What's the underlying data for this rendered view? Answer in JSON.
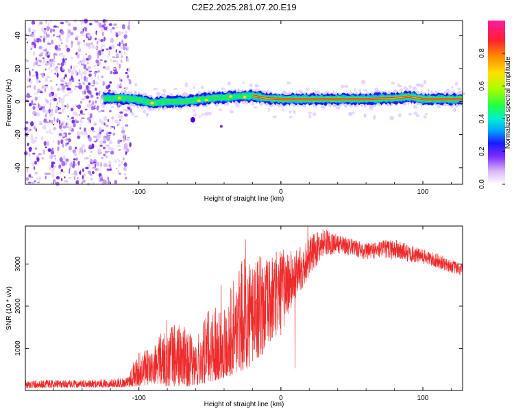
{
  "title": "C2E2.2025.281.07.20.E19",
  "colors": {
    "snr_line": "#ee2b2b",
    "frame": "#000000",
    "background": "#ffffff"
  },
  "chart_data": [
    {
      "type": "heatmap",
      "name": "spectrogram",
      "xlabel": "Height of straight line (km)",
      "ylabel": "Frequency (Hz)",
      "xlim": [
        -180,
        128
      ],
      "ylim": [
        -50,
        49
      ],
      "xticks": [
        -100,
        0,
        100
      ],
      "xtick_labels": [
        "-100",
        "0",
        "100"
      ],
      "yticks": [
        -40,
        -20,
        0,
        20,
        40
      ],
      "ytick_labels": [
        "-40",
        "-20",
        "0",
        "20",
        "40"
      ],
      "noise_region": {
        "x_from": -180,
        "x_to": -105,
        "y_from": -50,
        "y_to": 49
      },
      "signal_trace": [
        {
          "x": -125,
          "y": 2
        },
        {
          "x": -110,
          "y": 2
        },
        {
          "x": -100,
          "y": 1
        },
        {
          "x": -90,
          "y": -1
        },
        {
          "x": -80,
          "y": 0
        },
        {
          "x": -70,
          "y": 0
        },
        {
          "x": -60,
          "y": 1
        },
        {
          "x": -50,
          "y": 2
        },
        {
          "x": -40,
          "y": 2.5
        },
        {
          "x": -30,
          "y": 3
        },
        {
          "x": -20,
          "y": 3.5
        },
        {
          "x": -10,
          "y": 2
        },
        {
          "x": 0,
          "y": 1.5
        },
        {
          "x": 10,
          "y": 1.5
        },
        {
          "x": 20,
          "y": 1.5
        },
        {
          "x": 40,
          "y": 1.5
        },
        {
          "x": 60,
          "y": 1.5
        },
        {
          "x": 80,
          "y": 2
        },
        {
          "x": 90,
          "y": 3
        },
        {
          "x": 100,
          "y": 1.5
        },
        {
          "x": 128,
          "y": 1.5
        }
      ],
      "colorbar": {
        "label": "Normalized spectral amplitude",
        "range": [
          0.0,
          1.0
        ],
        "ticks": [
          0.0,
          0.2,
          0.4,
          0.6,
          0.8
        ],
        "tick_labels": [
          "0.0",
          "0.2",
          "0.4",
          "0.6",
          "0.8"
        ]
      }
    },
    {
      "type": "line",
      "name": "snr",
      "xlabel": "Height of straight line (km)",
      "ylabel": "SNR (10 * v/v)",
      "xlim": [
        -180,
        128
      ],
      "ylim": [
        0,
        3900
      ],
      "xticks": [
        -100,
        0,
        100
      ],
      "xtick_labels": [
        "-100",
        "0",
        "100"
      ],
      "yticks": [
        1000,
        2000,
        3000
      ],
      "ytick_labels": [
        "1000",
        "2000",
        "3000"
      ],
      "envelope": [
        {
          "x": -180,
          "lo": 60,
          "hi": 250
        },
        {
          "x": -140,
          "lo": 70,
          "hi": 240
        },
        {
          "x": -110,
          "lo": 80,
          "hi": 300
        },
        {
          "x": -100,
          "lo": 100,
          "hi": 900
        },
        {
          "x": -90,
          "lo": 150,
          "hi": 1000
        },
        {
          "x": -80,
          "lo": 100,
          "hi": 1700
        },
        {
          "x": -70,
          "lo": 100,
          "hi": 1600
        },
        {
          "x": -60,
          "lo": 100,
          "hi": 1200
        },
        {
          "x": -50,
          "lo": 200,
          "hi": 2000
        },
        {
          "x": -40,
          "lo": 300,
          "hi": 2100
        },
        {
          "x": -30,
          "lo": 400,
          "hi": 3000
        },
        {
          "x": -20,
          "lo": 600,
          "hi": 3300
        },
        {
          "x": -10,
          "lo": 900,
          "hi": 3100
        },
        {
          "x": 0,
          "lo": 1300,
          "hi": 3400
        },
        {
          "x": 10,
          "lo": 2100,
          "hi": 3300
        },
        {
          "x": 20,
          "lo": 2700,
          "hi": 3650
        },
        {
          "x": 30,
          "lo": 3200,
          "hi": 3850
        },
        {
          "x": 40,
          "lo": 3250,
          "hi": 3700
        },
        {
          "x": 50,
          "lo": 3200,
          "hi": 3600
        },
        {
          "x": 60,
          "lo": 3100,
          "hi": 3500
        },
        {
          "x": 70,
          "lo": 3150,
          "hi": 3550
        },
        {
          "x": 80,
          "lo": 3100,
          "hi": 3600
        },
        {
          "x": 90,
          "lo": 3050,
          "hi": 3450
        },
        {
          "x": 100,
          "lo": 3000,
          "hi": 3350
        },
        {
          "x": 110,
          "lo": 2900,
          "hi": 3250
        },
        {
          "x": 120,
          "lo": 2800,
          "hi": 3100
        },
        {
          "x": 128,
          "lo": 2700,
          "hi": 3000
        }
      ],
      "spikes": [
        {
          "x": 10,
          "y": 530
        },
        {
          "x": 19,
          "y": 3900
        },
        {
          "x": -25,
          "y": 3580
        },
        {
          "x": -42,
          "y": 2500
        }
      ]
    }
  ]
}
